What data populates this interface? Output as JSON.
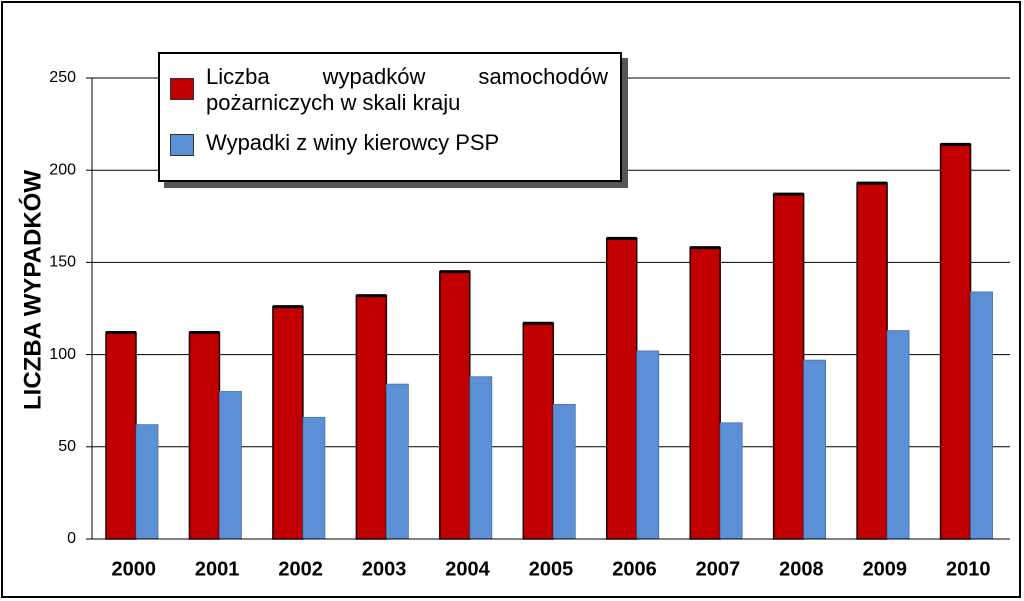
{
  "chart_data": {
    "type": "bar",
    "y_label": "LICZBA  WYPADKÓW",
    "categories": [
      "2000",
      "2001",
      "2002",
      "2003",
      "2004",
      "2005",
      "2006",
      "2007",
      "2008",
      "2009",
      "2010"
    ],
    "series": [
      {
        "name": "Liczba wypadków samochodów pożarniczych w skali kraju",
        "color": "#c00000",
        "values": [
          112,
          112,
          126,
          132,
          145,
          117,
          163,
          158,
          187,
          193,
          214
        ]
      },
      {
        "name": "Wypadki z winy kierowcy PSP",
        "color": "#5b8fd6",
        "values": [
          62,
          80,
          66,
          84,
          88,
          73,
          102,
          63,
          97,
          113,
          134
        ]
      }
    ],
    "ylim": [
      0,
      250
    ],
    "yticks": [
      0,
      50,
      100,
      150,
      200,
      250
    ],
    "grid": true,
    "legend": "top-left"
  }
}
